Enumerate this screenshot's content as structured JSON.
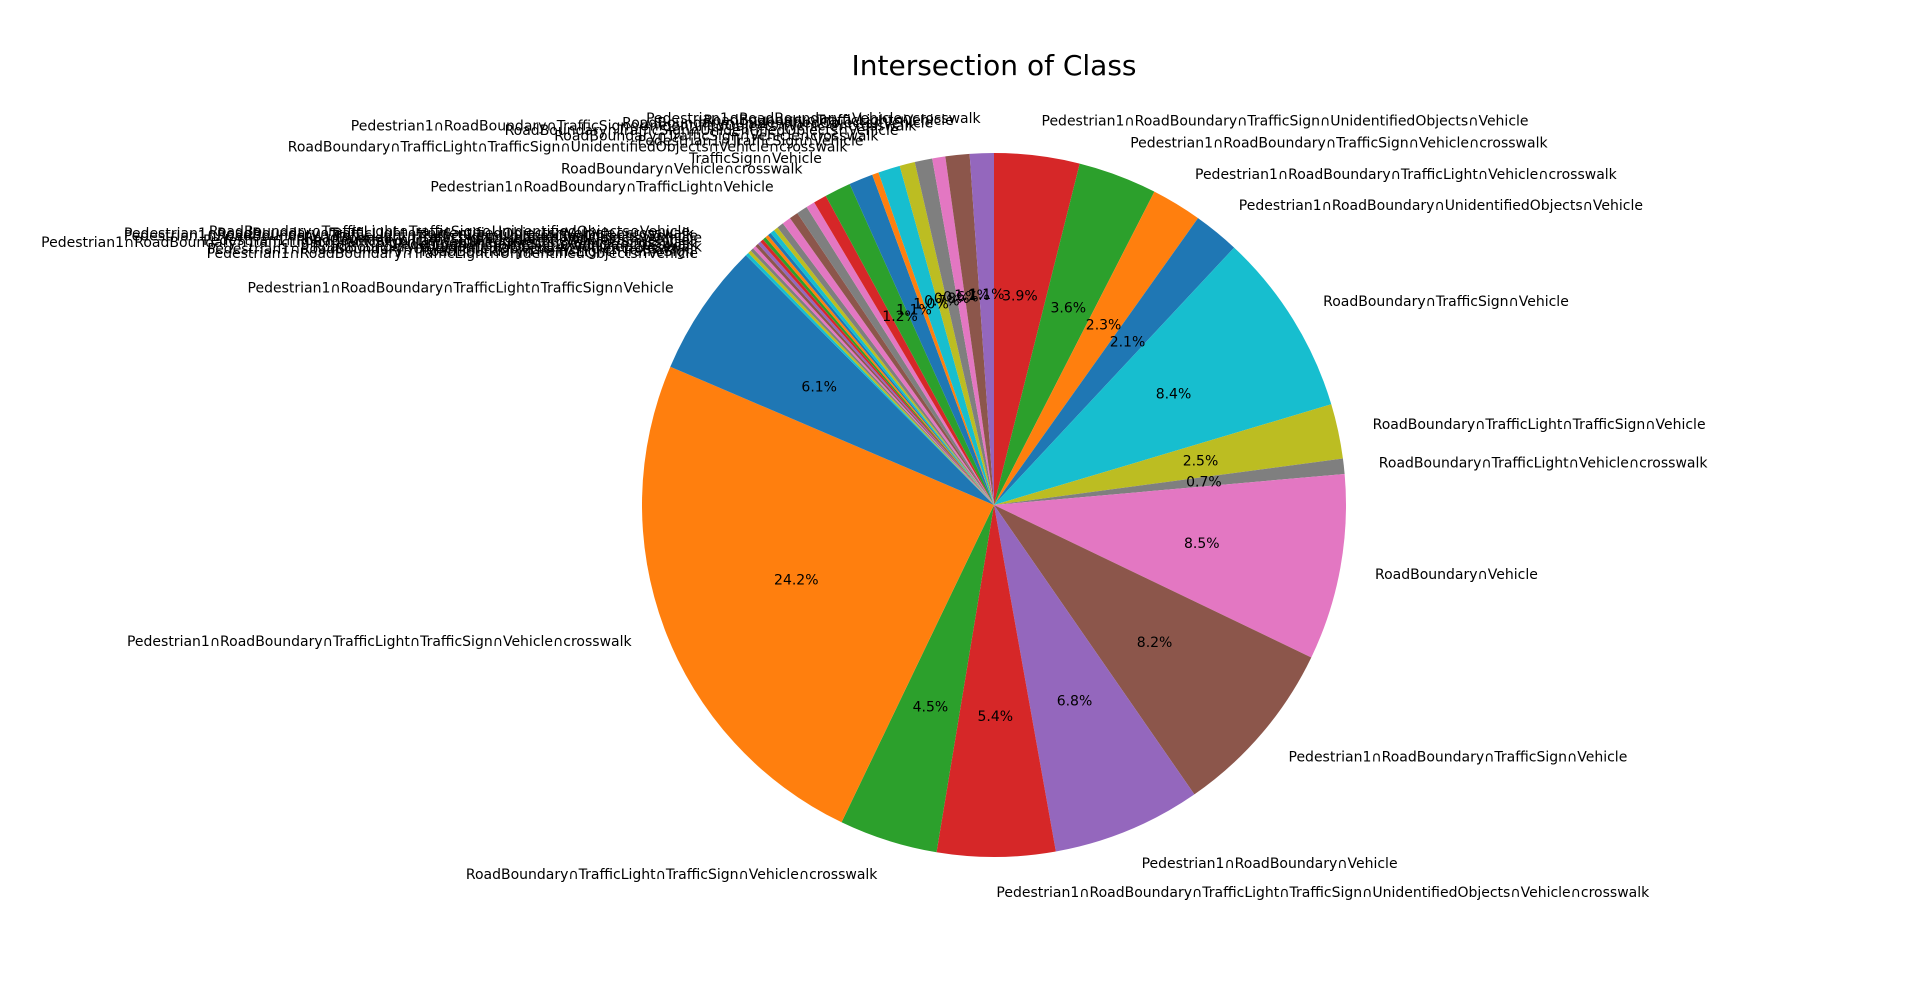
{
  "chart_data": {
    "type": "pie",
    "title": "Intersection of Class",
    "start_angle_deg": 90,
    "direction": "clockwise",
    "slices": [
      {
        "label": "Pedestrian1∩RoadBoundary∩TrafficSign∩UnidentifiedObjects∩Vehicle",
        "value": 3.9,
        "pct_label": "3.9%",
        "color": "#d62728"
      },
      {
        "label": "Pedestrian1∩RoadBoundary∩TrafficSign∩Vehicle∩crosswalk",
        "value": 3.6,
        "pct_label": "3.6%",
        "color": "#2ca02c"
      },
      {
        "label": "Pedestrian1∩RoadBoundary∩TrafficLight∩Vehicle∩crosswalk",
        "value": 2.3,
        "pct_label": "2.3%",
        "color": "#ff7f0e"
      },
      {
        "label": "Pedestrian1∩RoadBoundary∩UnidentifiedObjects∩Vehicle",
        "value": 2.1,
        "pct_label": "2.1%",
        "color": "#1f77b4"
      },
      {
        "label": "RoadBoundary∩TrafficSign∩Vehicle",
        "value": 8.4,
        "pct_label": "8.4%",
        "color": "#17becf"
      },
      {
        "label": "RoadBoundary∩TrafficLight∩TrafficSign∩Vehicle",
        "value": 2.5,
        "pct_label": "2.5%",
        "color": "#bcbd22"
      },
      {
        "label": "RoadBoundary∩TrafficLight∩Vehicle∩crosswalk",
        "value": 0.7,
        "pct_label": "0.7%",
        "color": "#7f7f7f"
      },
      {
        "label": "RoadBoundary∩Vehicle",
        "value": 8.5,
        "pct_label": "8.5%",
        "color": "#e377c2"
      },
      {
        "label": "Pedestrian1∩RoadBoundary∩TrafficSign∩Vehicle",
        "value": 8.2,
        "pct_label": "8.2%",
        "color": "#8c564b"
      },
      {
        "label": "Pedestrian1∩RoadBoundary∩Vehicle",
        "value": 6.8,
        "pct_label": "6.8%",
        "color": "#9467bd"
      },
      {
        "label": "Pedestrian1∩RoadBoundary∩TrafficLight∩TrafficSign∩UnidentifiedObjects∩Vehicle∩crosswalk",
        "value": 5.4,
        "pct_label": "5.4%",
        "color": "#d62728"
      },
      {
        "label": "RoadBoundary∩TrafficLight∩TrafficSign∩Vehicle∩crosswalk",
        "value": 4.5,
        "pct_label": "4.5%",
        "color": "#2ca02c"
      },
      {
        "label": "Pedestrian1∩RoadBoundary∩TrafficLight∩TrafficSign∩Vehicle∩crosswalk",
        "value": 24.2,
        "pct_label": "24.2%",
        "color": "#ff7f0e"
      },
      {
        "label": "Pedestrian1∩RoadBoundary∩TrafficLight∩TrafficSign∩Vehicle",
        "value": 6.1,
        "pct_label": "6.1%",
        "color": "#1f77b4"
      },
      {
        "label": "",
        "value": 0.15,
        "pct_label": "",
        "color": "#17becf"
      },
      {
        "label": "",
        "value": 0.15,
        "pct_label": "",
        "color": "#bcbd22"
      },
      {
        "label": "",
        "value": 0.15,
        "pct_label": "",
        "color": "#7f7f7f"
      },
      {
        "label": "",
        "value": 0.15,
        "pct_label": "",
        "color": "#e377c2"
      },
      {
        "label": "",
        "value": 0.15,
        "pct_label": "",
        "color": "#8c564b"
      },
      {
        "label": "",
        "value": 0.15,
        "pct_label": "",
        "color": "#9467bd"
      },
      {
        "label": "",
        "value": 0.15,
        "pct_label": "",
        "color": "#d62728"
      },
      {
        "label": "",
        "value": 0.15,
        "pct_label": "",
        "color": "#2ca02c"
      },
      {
        "label": "",
        "value": 0.15,
        "pct_label": "",
        "color": "#ff7f0e"
      },
      {
        "label": "",
        "value": 0.15,
        "pct_label": "",
        "color": "#1f77b4"
      },
      {
        "label": "",
        "value": 0.2,
        "pct_label": "",
        "color": "#17becf"
      },
      {
        "label": "",
        "value": 0.2,
        "pct_label": "",
        "color": "#bcbd22"
      },
      {
        "label": "",
        "value": 0.3,
        "pct_label": "",
        "color": "#7f7f7f"
      },
      {
        "label": "",
        "value": 0.4,
        "pct_label": "",
        "color": "#e377c2"
      },
      {
        "label": "Pedestrian1∩RoadBoundary∩TrafficLight∩Vehicle",
        "value": 0.4,
        "pct_label": "",
        "color": "#8c564b"
      },
      {
        "label": "",
        "value": 0.5,
        "pct_label": "",
        "color": "#7f7f7f"
      },
      {
        "label": "",
        "value": 0.4,
        "pct_label": "",
        "color": "#e377c2"
      },
      {
        "label": "RoadBoundary∩Vehicle∩crosswalk",
        "value": 0.6,
        "pct_label": "",
        "color": "#d62728"
      },
      {
        "label": "TrafficSign∩Vehicle",
        "value": 1.2,
        "pct_label": "1.2%",
        "color": "#2ca02c"
      },
      {
        "label": "RoadBoundary∩TrafficLight∩TrafficSign∩UnidentifiedObjects∩Vehicle∩crosswalk",
        "value": 1.1,
        "pct_label": "1.1%",
        "color": "#1f77b4"
      },
      {
        "label": "Pedestrian1∩TrafficSign∩Vehicle",
        "value": 0.3,
        "pct_label": "",
        "color": "#ff7f0e"
      },
      {
        "label": "RoadBoundary∩TrafficSign∩Vehicle∩crosswalk",
        "value": 1.0,
        "pct_label": "1.0%",
        "color": "#17becf"
      },
      {
        "label": "RoadBoundary∩TrafficSign∩UnidentifiedObjects∩Vehicle",
        "value": 0.7,
        "pct_label": "0.7%",
        "color": "#bcbd22"
      },
      {
        "label": "Pedestrian1∩RoadBoundary∩TrafficSign∩UnidentifiedObjects∩Vehicle∩crosswalk",
        "value": 0.8,
        "pct_label": "0.8%",
        "color": "#7f7f7f"
      },
      {
        "label": "RoadBoundary∩UnidentifiedObjects∩Vehicle",
        "value": 0.6,
        "pct_label": "0.6%",
        "color": "#e377c2"
      },
      {
        "label": "RoadBoundary∩TrafficLight∩Vehicle",
        "value": 1.1,
        "pct_label": "1.1%",
        "color": "#8c564b"
      },
      {
        "label": "Pedestrian1∩RoadBoundary∩Vehicle∩crosswalk",
        "value": 1.1,
        "pct_label": "1.1%",
        "color": "#9467bd"
      }
    ],
    "crowded_labels": [
      "RoadBoundary∩TrafficLight∩TrafficSign∩UnidentifiedObjects∩Vehicle",
      "Pedestrian1∩RoadBoundary∩TrafficLight∩UnidentifiedObjects∩Vehicle∩crosswalk",
      "Pedestrian1∩RoadBoundary∩TrafficLight∩TrafficSign∩UnidentifiedObjects∩Vehicle",
      "RoadBoundary∩TrafficLight∩UnidentifiedObjects∩Vehicle",
      "Pedestrian1∩RoadBoundary∩TrafficSign∩UnidentifiedObjects∩Vehicle",
      "Pedestrian1∩RoadBoundary∩TrafficLight∩TrafficSign∩UnidentifiedObjects∩Vehicle∩crosswalk",
      "Pedestrian1∩TrafficSign∩Vehicle∩crosswalk",
      "RoadBoundary∩UnidentifiedObjects∩Vehicle∩crosswalk",
      "Pedestrian1∩RoadBoundary∩UnidentifiedObjects∩Vehicle∩crosswalk",
      "RoadBoundary∩TrafficLight∩TrafficSign",
      "Pedestrian1∩RoadBoundary∩TrafficLight∩UnidentifiedObjects∩Vehicle"
    ]
  }
}
